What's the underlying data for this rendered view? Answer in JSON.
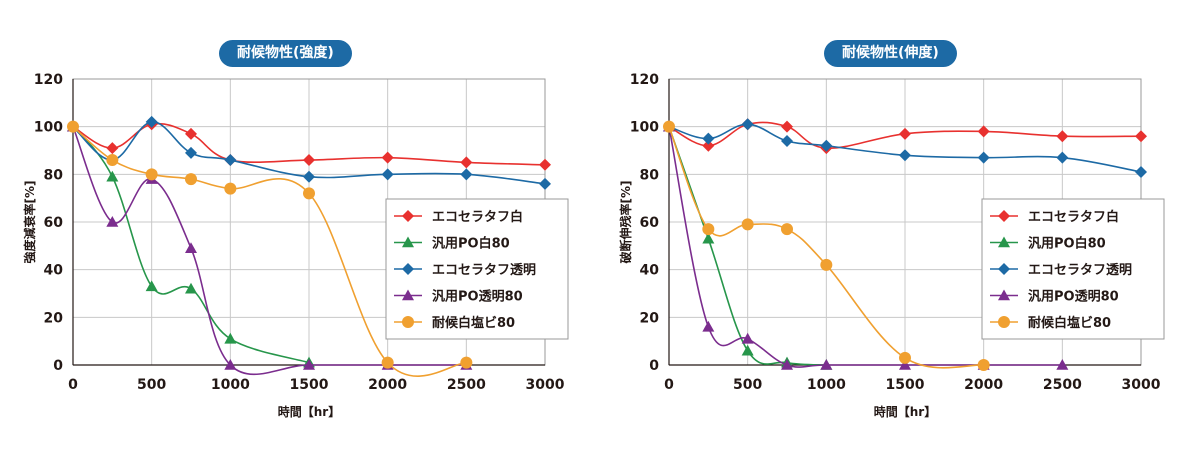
{
  "colors": {
    "eco_white": "#e8312f",
    "po_white": "#27964b",
    "eco_clear": "#1d6aa5",
    "po_clear": "#7b2d8e",
    "pvc": "#f0a030",
    "title_bg": "#1d6aa5"
  },
  "chart_data": [
    {
      "type": "line",
      "title": "耐候物性(強度)",
      "xlabel": "時間【hr】",
      "ylabel": "強度減衰率[%]",
      "xlim": [
        0,
        3000
      ],
      "ylim": [
        0,
        120
      ],
      "xticks": [
        "0",
        "500",
        "1000",
        "1500",
        "2000",
        "2500",
        "3000"
      ],
      "yticks": [
        "0",
        "20",
        "40",
        "60",
        "80",
        "100",
        "120"
      ],
      "grid": true,
      "legend_position": "right",
      "series": [
        {
          "name": "エコセラタフ白",
          "color": "#e8312f",
          "marker": "diamond",
          "x": [
            0,
            250,
            500,
            750,
            1000,
            1500,
            2000,
            2500,
            3000
          ],
          "y": [
            100,
            91,
            101,
            97,
            86,
            86,
            87,
            85,
            84
          ]
        },
        {
          "name": "汎用PO白80",
          "color": "#27964b",
          "marker": "triangle",
          "x": [
            0,
            250,
            500,
            750,
            1000,
            1500
          ],
          "y": [
            100,
            79,
            33,
            32,
            11,
            1
          ]
        },
        {
          "name": "エコセラタフ透明",
          "color": "#1d6aa5",
          "marker": "diamond",
          "x": [
            0,
            250,
            500,
            750,
            1000,
            1500,
            2000,
            2500,
            3000
          ],
          "y": [
            100,
            86,
            102,
            89,
            86,
            79,
            80,
            80,
            76
          ]
        },
        {
          "name": "汎用PO透明80",
          "color": "#7b2d8e",
          "marker": "triangle",
          "x": [
            0,
            250,
            500,
            750,
            1000,
            1500,
            2000,
            2500
          ],
          "y": [
            100,
            60,
            78,
            49,
            0,
            0,
            0,
            0
          ]
        },
        {
          "name": "耐候白塩ビ80",
          "color": "#f0a030",
          "marker": "circle",
          "x": [
            0,
            250,
            500,
            750,
            1000,
            1500,
            2000,
            2500
          ],
          "y": [
            100,
            86,
            80,
            78,
            74,
            72,
            1,
            1
          ]
        }
      ]
    },
    {
      "type": "line",
      "title": "耐候物性(伸度)",
      "xlabel": "時間【hr】",
      "ylabel": "破断伸残率[%]",
      "xlim": [
        0,
        3000
      ],
      "ylim": [
        0,
        120
      ],
      "xticks": [
        "0",
        "500",
        "1000",
        "1500",
        "2000",
        "2500",
        "3000"
      ],
      "yticks": [
        "0",
        "20",
        "40",
        "60",
        "80",
        "100",
        "120"
      ],
      "grid": true,
      "legend_position": "right",
      "series": [
        {
          "name": "エコセラタフ白",
          "color": "#e8312f",
          "marker": "diamond",
          "x": [
            0,
            250,
            500,
            750,
            1000,
            1500,
            2000,
            2500,
            3000
          ],
          "y": [
            100,
            92,
            101,
            100,
            91,
            97,
            98,
            96,
            96
          ]
        },
        {
          "name": "汎用PO白80",
          "color": "#27964b",
          "marker": "triangle",
          "x": [
            0,
            250,
            500,
            750,
            1000
          ],
          "y": [
            100,
            53,
            6,
            1,
            0
          ]
        },
        {
          "name": "エコセラタフ透明",
          "color": "#1d6aa5",
          "marker": "diamond",
          "x": [
            0,
            250,
            500,
            750,
            1000,
            1500,
            2000,
            2500,
            3000
          ],
          "y": [
            100,
            95,
            101,
            94,
            92,
            88,
            87,
            87,
            81
          ]
        },
        {
          "name": "汎用PO透明80",
          "color": "#7b2d8e",
          "marker": "triangle",
          "x": [
            0,
            250,
            500,
            750,
            1000,
            1500,
            2000,
            2500
          ],
          "y": [
            100,
            16,
            11,
            0,
            0,
            0,
            0,
            0
          ]
        },
        {
          "name": "耐候白塩ビ80",
          "color": "#f0a030",
          "marker": "circle",
          "x": [
            0,
            250,
            500,
            750,
            1000,
            1500,
            2000
          ],
          "y": [
            100,
            57,
            59,
            57,
            42,
            3,
            0
          ]
        }
      ]
    }
  ]
}
